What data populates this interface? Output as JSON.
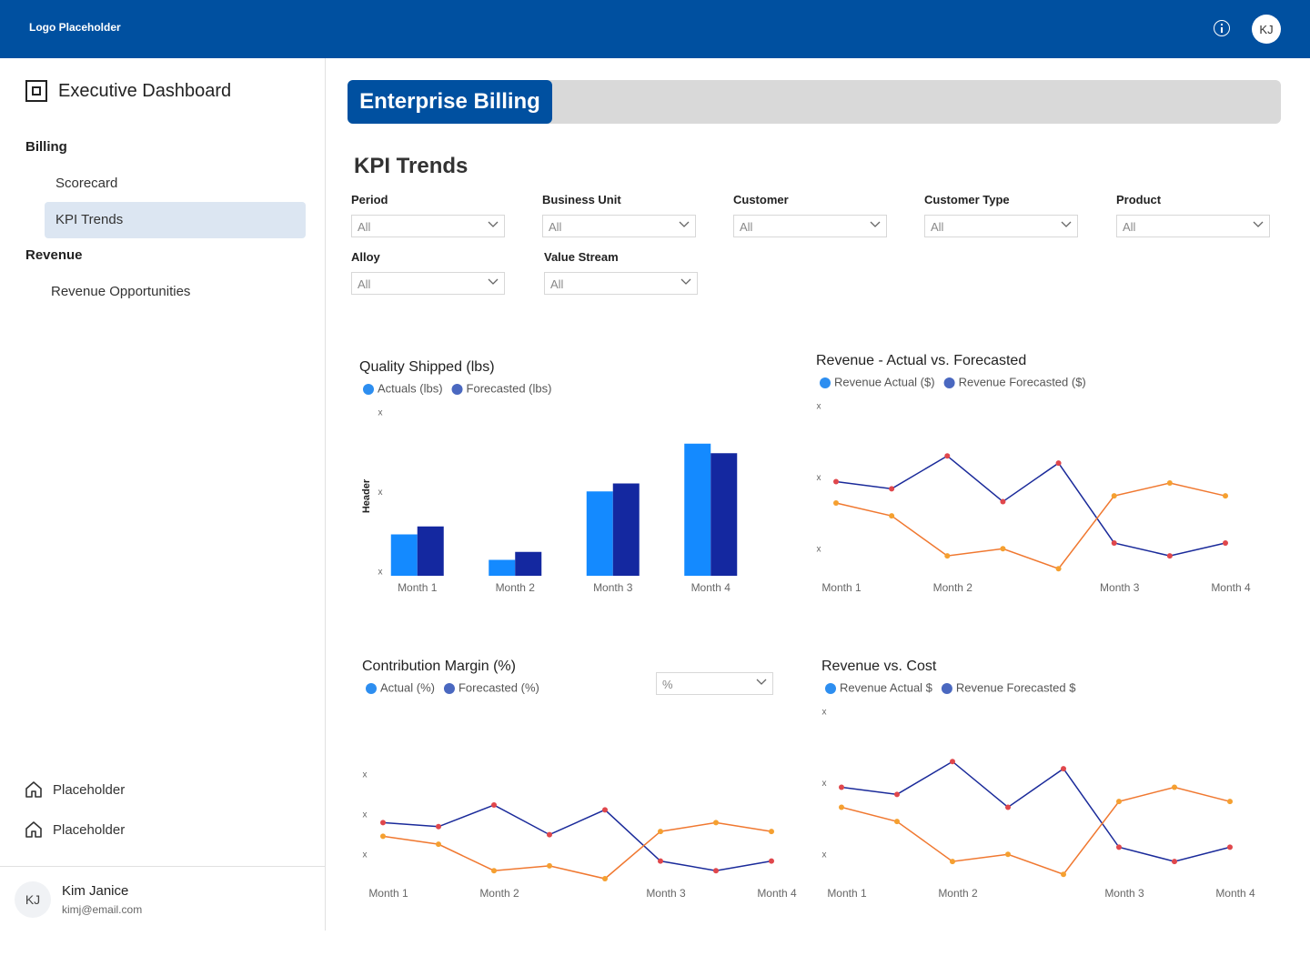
{
  "header": {
    "logo": "Logo Placeholder",
    "avatar": "KJ"
  },
  "sidebar": {
    "title": "Executive Dashboard",
    "sections": [
      {
        "label": "Billing",
        "items": [
          "Scorecard",
          "KPI Trends"
        ]
      },
      {
        "label": "Revenue",
        "items": [
          "Revenue Opportunities"
        ]
      }
    ],
    "footer_links": [
      "Placeholder",
      "Placeholder"
    ],
    "user": {
      "initials": "KJ",
      "name": "Kim Janice",
      "email": "kimj@email.com"
    }
  },
  "tab": "Enterprise Billing",
  "heading": "KPI Trends",
  "filters": [
    {
      "label": "Period",
      "value": "All"
    },
    {
      "label": "Business Unit",
      "value": "All"
    },
    {
      "label": "Customer",
      "value": "All"
    },
    {
      "label": "Customer Type",
      "value": "All"
    },
    {
      "label": "Product",
      "value": "All"
    },
    {
      "label": "Alloy",
      "value": "All"
    },
    {
      "label": "Value Stream",
      "value": "All"
    }
  ],
  "chart_data": [
    {
      "type": "bar",
      "title": "Quality Shipped (lbs)",
      "y_label": "Header",
      "categories": [
        "Month 1",
        "Month 2",
        "Month 3",
        "Month 4"
      ],
      "series": [
        {
          "name": "Actuals (lbs)",
          "color": "#148aff",
          "legend_color": "#2d8ef0",
          "values": [
            26,
            10,
            53,
            83
          ]
        },
        {
          "name": "Forecasted (lbs)",
          "color": "#1428a0",
          "legend_color": "#4a68c0",
          "values": [
            31,
            15,
            58,
            77
          ]
        }
      ],
      "ylim": [
        0,
        100
      ],
      "yticks": [
        {
          "value": 0,
          "label": "x"
        },
        {
          "value": 50,
          "label": "x"
        },
        {
          "value": 100,
          "label": "x"
        }
      ]
    },
    {
      "type": "line",
      "title": "Revenue - Actual vs. Forecasted",
      "categories": [
        "Month 1",
        null,
        "Month 2",
        null,
        null,
        "Month 3",
        null,
        "Month 4"
      ],
      "series": [
        {
          "name": "Revenue Actual ($)",
          "color": "#1a2a9a",
          "marker_color": "#e0474c",
          "legend_color": "#2d8ef0",
          "values": [
            50,
            45,
            68,
            36,
            63,
            7,
            -2,
            7
          ]
        },
        {
          "name": "Revenue Forecasted ($)",
          "color": "#f07830",
          "marker_color": "#f5a030",
          "legend_color": "#4a68c0",
          "values": [
            35,
            26,
            -2,
            3,
            -11,
            40,
            49,
            40
          ]
        }
      ],
      "ylim": [
        -15,
        100
      ],
      "yticks": [
        {
          "value": 0,
          "label": "x"
        },
        {
          "value": 50,
          "label": "x"
        },
        {
          "value": 100,
          "label": "x"
        }
      ]
    },
    {
      "type": "line",
      "title": "Contribution Margin (%)",
      "dropdown": "%",
      "categories": [
        "Month 1",
        null,
        "Month 2",
        null,
        null,
        "Month 3",
        null,
        "Month 4"
      ],
      "series": [
        {
          "name": "Actual (%)",
          "color": "#1a2a9a",
          "marker_color": "#e0474c",
          "legend_color": "#2d8ef0",
          "values": [
            45,
            40,
            67,
            30,
            61,
            -3,
            -15,
            -3
          ]
        },
        {
          "name": "Forecasted (%)",
          "color": "#f07830",
          "marker_color": "#f5a030",
          "legend_color": "#4a68c0",
          "values": [
            28,
            18,
            -15,
            -9,
            -25,
            34,
            45,
            34
          ]
        }
      ],
      "ylim": [
        -30,
        100
      ],
      "yticks": [
        {
          "value": 0,
          "label": "x"
        },
        {
          "value": 50,
          "label": "x"
        },
        {
          "value": 100,
          "label": "x"
        }
      ]
    },
    {
      "type": "line",
      "title": "Revenue vs. Cost",
      "categories": [
        "Month 1",
        null,
        "Month 2",
        null,
        null,
        "Month 3",
        null,
        "Month 4"
      ],
      "series": [
        {
          "name": "Revenue Actual $",
          "color": "#1a2a9a",
          "marker_color": "#e0474c",
          "legend_color": "#2d8ef0",
          "values": [
            50,
            45,
            68,
            36,
            63,
            8,
            -2,
            8
          ]
        },
        {
          "name": "Revenue Forecasted $",
          "color": "#f07830",
          "marker_color": "#f5a030",
          "legend_color": "#4a68c0",
          "values": [
            36,
            26,
            -2,
            3,
            -11,
            40,
            50,
            40
          ]
        }
      ],
      "ylim": [
        -15,
        100
      ],
      "yticks": [
        {
          "value": 0,
          "label": "x"
        },
        {
          "value": 50,
          "label": "x"
        },
        {
          "value": 100,
          "label": "x"
        }
      ]
    }
  ]
}
